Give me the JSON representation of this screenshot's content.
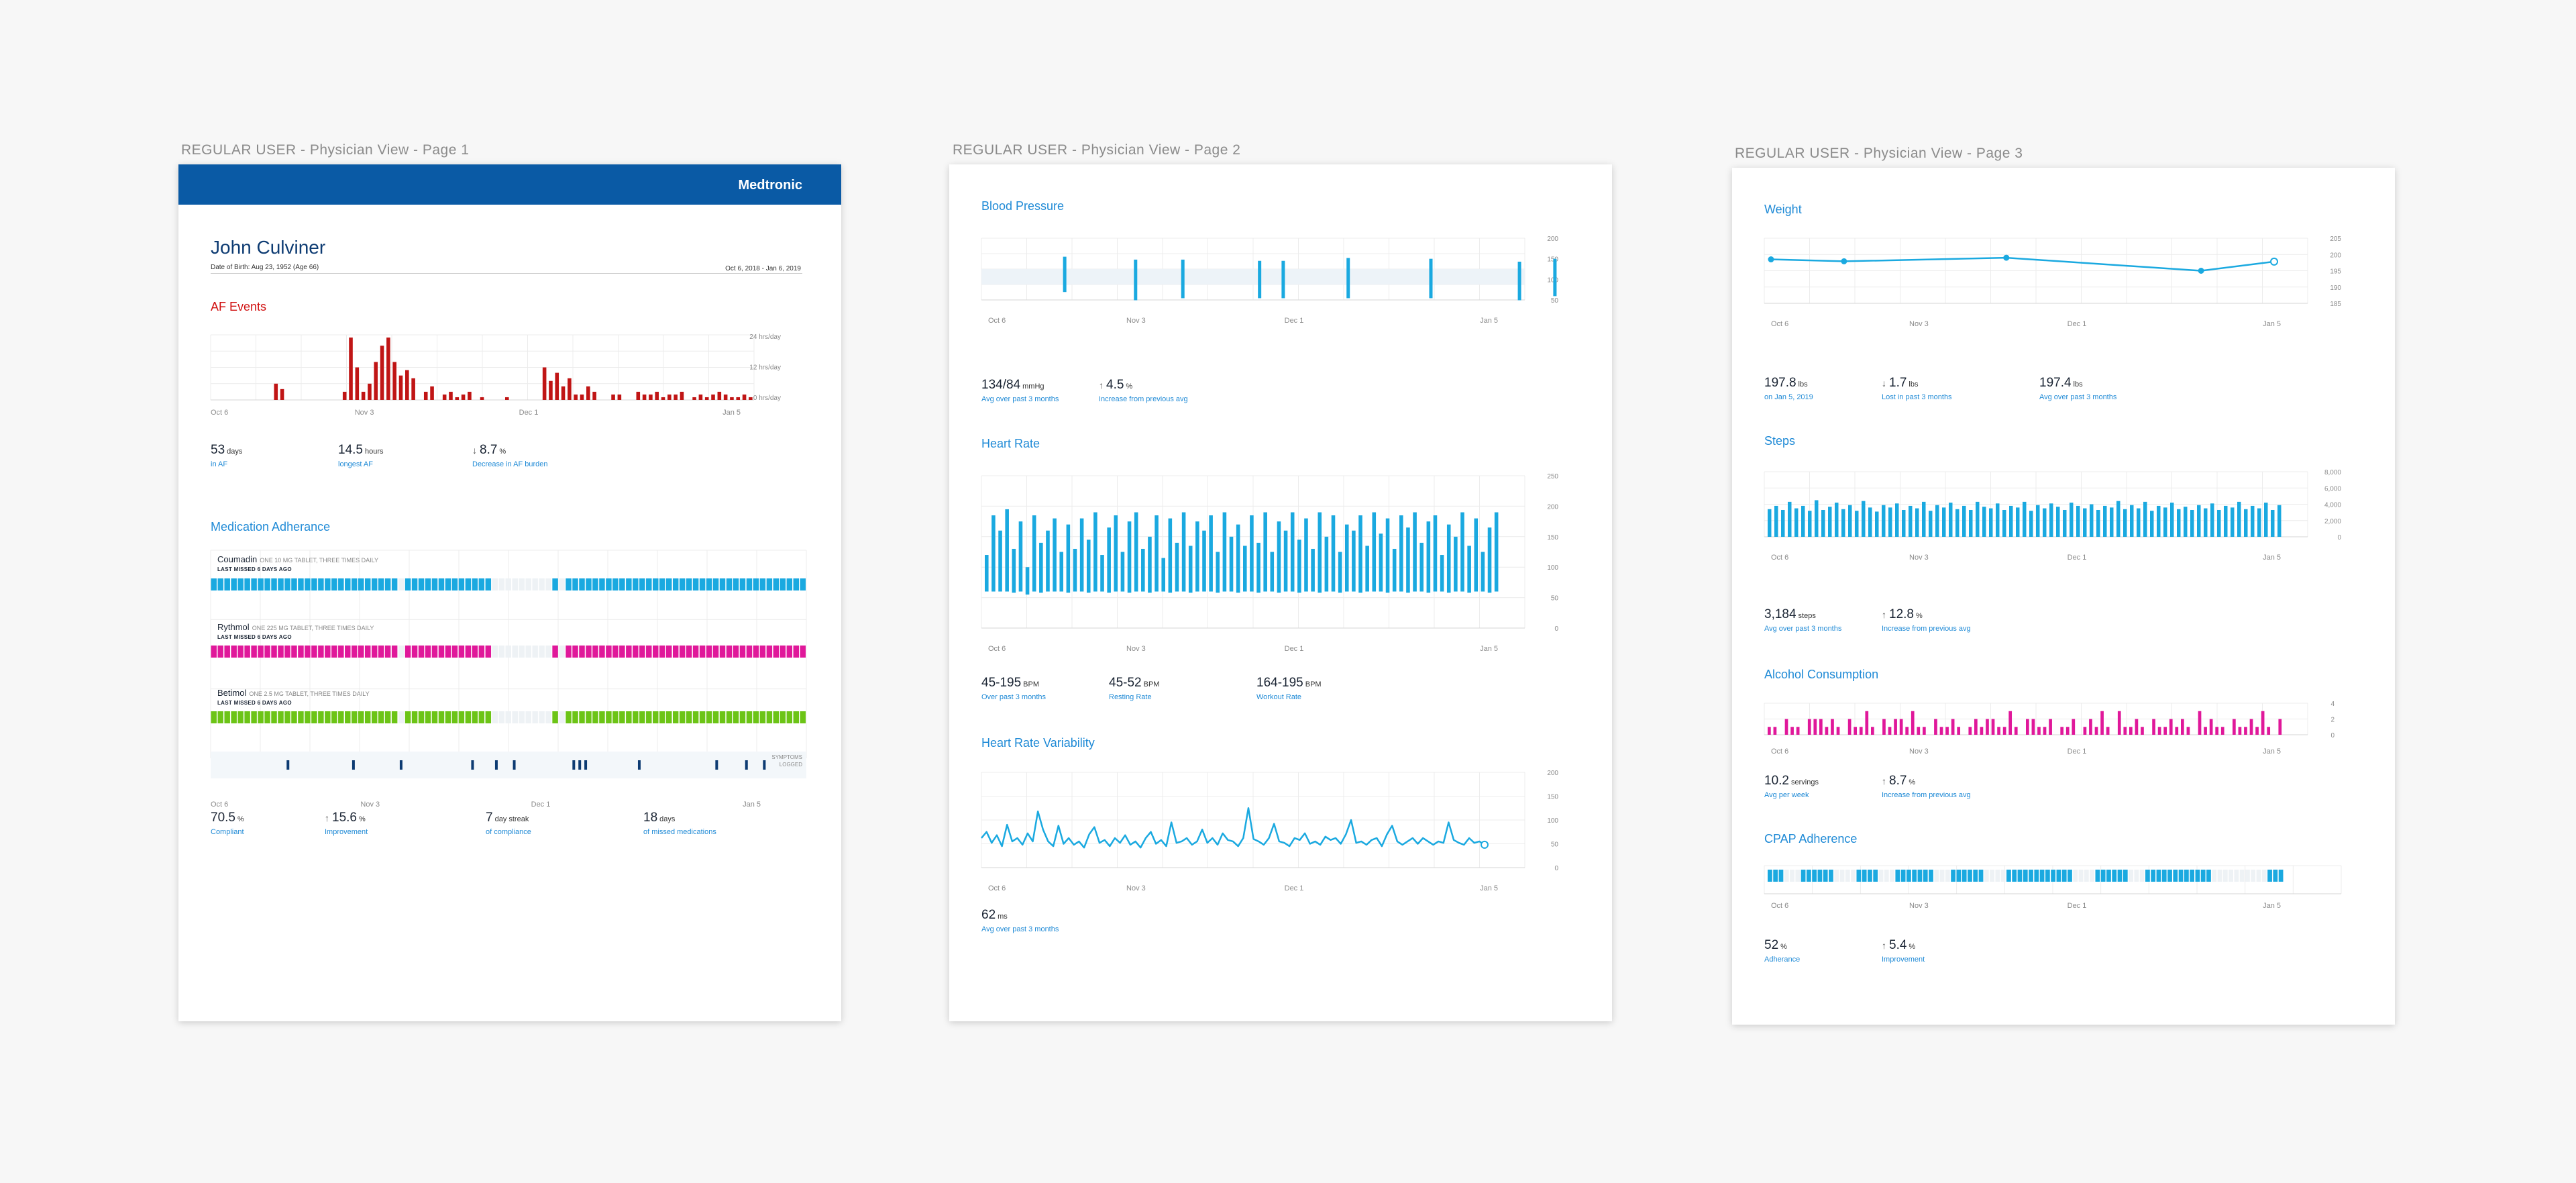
{
  "frames": {
    "page1_label": "REGULAR USER - Physician View - Page 1",
    "page2_label": "REGULAR USER - Physician View - Page 2",
    "page3_label": "REGULAR USER - Physician View - Page 3"
  },
  "colors": {
    "banner": "#0a5aa5",
    "accent": "#1f8ad6",
    "red": "#c01515",
    "cyan": "#1aa9e0",
    "magenta": "#e0189a",
    "green": "#6cc416",
    "navy": "#0d3b72"
  },
  "page1": {
    "brand": "Medtronic",
    "patient_name": "John Culviner",
    "dob": "Date of Birth: Aug 23, 1952 (Age 66)",
    "date_range": "Oct 6, 2018 - Jan 6, 2019",
    "af_title": "AF Events",
    "af_stats": [
      {
        "num": "53",
        "unit": "days",
        "label": "in AF",
        "arrow": ""
      },
      {
        "num": "14.5",
        "unit": "hours",
        "label": "longest AF",
        "arrow": ""
      },
      {
        "num": "8.7",
        "unit": "%",
        "label": "Decrease in AF burden",
        "arrow": "↓"
      }
    ],
    "med_title": "Medication Adherance",
    "medications": [
      {
        "name": "Coumadin",
        "dose": "ONE 10 MG TABLET, THREE TIMES DAILY",
        "missed": "LAST MISSED 6 DAYS AGO"
      },
      {
        "name": "Rythmol",
        "dose": "ONE 225 MG TABLET, THREE TIMES DAILY",
        "missed": "LAST MISSED 6 DAYS AGO"
      },
      {
        "name": "Betimol",
        "dose": "ONE 2.5 MG TABLET, THREE TIMES DAILY",
        "missed": "LAST MISSED 6 DAYS AGO"
      }
    ],
    "symptoms_label_1": "SYMPTOMS",
    "symptoms_label_2": "LOGGED",
    "med_stats": [
      {
        "num": "70.5",
        "unit": "%",
        "label": "Compliant",
        "arrow": ""
      },
      {
        "num": "15.6",
        "unit": "%",
        "label": "Improvement",
        "arrow": "↑"
      },
      {
        "num": "7",
        "unit": "day streak",
        "label": "of compliance",
        "arrow": ""
      },
      {
        "num": "18",
        "unit": "days",
        "label": "of missed medications",
        "arrow": ""
      }
    ]
  },
  "page2": {
    "bp_title": "Blood Pressure",
    "bp_stats": [
      {
        "num": "134/84",
        "unit": "mmHg",
        "label": "Avg over past 3 months",
        "arrow": ""
      },
      {
        "num": "4.5",
        "unit": "%",
        "label": "Increase from previous avg",
        "arrow": "↑"
      }
    ],
    "hr_title": "Heart Rate",
    "hr_stats": [
      {
        "num": "45-195",
        "unit": "BPM",
        "label": "Over past 3 months",
        "arrow": ""
      },
      {
        "num": "45-52",
        "unit": "BPM",
        "label": "Resting Rate",
        "arrow": ""
      },
      {
        "num": "164-195",
        "unit": "BPM",
        "label": "Workout Rate",
        "arrow": ""
      }
    ],
    "hrv_title": "Heart Rate Variability",
    "hrv_stats": [
      {
        "num": "62",
        "unit": "ms",
        "label": "Avg over past 3 months",
        "arrow": ""
      }
    ]
  },
  "page3": {
    "weight_title": "Weight",
    "weight_stats": [
      {
        "num": "197.8",
        "unit": "lbs",
        "label": "on Jan 5, 2019",
        "arrow": ""
      },
      {
        "num": "1.7",
        "unit": "lbs",
        "label": "Lost in past 3 months",
        "arrow": "↓"
      },
      {
        "num": "197.4",
        "unit": "lbs",
        "label": "Avg over past 3 months",
        "arrow": ""
      }
    ],
    "steps_title": "Steps",
    "steps_stats": [
      {
        "num": "3,184",
        "unit": "steps",
        "label": "Avg over past 3 months",
        "arrow": ""
      },
      {
        "num": "12.8",
        "unit": "%",
        "label": "Increase from previous avg",
        "arrow": "↑"
      }
    ],
    "alcohol_title": "Alcohol Consumption",
    "alcohol_stats": [
      {
        "num": "10.2",
        "unit": "servings",
        "label": "Avg per week",
        "arrow": ""
      },
      {
        "num": "8.7",
        "unit": "%",
        "label": "Increase from previous avg",
        "arrow": "↑"
      }
    ],
    "cpap_title": "CPAP Adherence",
    "cpap_stats": [
      {
        "num": "52",
        "unit": "%",
        "label": "Adherance",
        "arrow": ""
      },
      {
        "num": "5.4",
        "unit": "%",
        "label": "Improvement",
        "arrow": "↑"
      }
    ]
  },
  "chart_data": [
    {
      "id": "af",
      "type": "bar",
      "title": "AF Events",
      "x_ticks": [
        "Oct 6",
        "Nov 3",
        "Dec 1",
        "Jan 5"
      ],
      "y_ticks": [
        "24 hrs/day",
        "12 hrs/day",
        "0 hrs/day"
      ],
      "ylim": [
        0,
        24
      ],
      "values": [
        0,
        0,
        0,
        0,
        0,
        0,
        0,
        0,
        0,
        0,
        6,
        4,
        0,
        0,
        0,
        0,
        0,
        0,
        0,
        0,
        0,
        3,
        23,
        12,
        3,
        6,
        14,
        20,
        23,
        14,
        9,
        11,
        8,
        0,
        3,
        5,
        0,
        2,
        3,
        1,
        2,
        3,
        0,
        1,
        0,
        0,
        0,
        1,
        0,
        0,
        0,
        0,
        0,
        12,
        7,
        10,
        5,
        8,
        2,
        2,
        5,
        3,
        0,
        0,
        2,
        2,
        0,
        0,
        3,
        2,
        2,
        3,
        1,
        2,
        2,
        3,
        0,
        1,
        2,
        1,
        2,
        3,
        2,
        1,
        1,
        2,
        1
      ]
    },
    {
      "id": "meds",
      "type": "heatmap",
      "title": "Medication Adherance",
      "x_ticks": [
        "Oct 6",
        "Nov 3",
        "Dec 1",
        "Jan 5"
      ],
      "rows": [
        "Coumadin",
        "Rythmol",
        "Betimol"
      ],
      "taken": [
        1,
        1,
        1,
        1,
        1,
        1,
        1,
        1,
        1,
        1,
        1,
        1,
        1,
        1,
        1,
        1,
        1,
        1,
        1,
        1,
        1,
        1,
        1,
        1,
        1,
        1,
        1,
        1,
        0,
        1,
        1,
        1,
        1,
        1,
        1,
        1,
        1,
        1,
        1,
        1,
        1,
        1,
        0,
        0,
        0,
        0,
        0,
        0,
        0,
        0,
        0,
        1,
        0,
        1,
        1,
        1,
        1,
        1,
        1,
        1,
        1,
        1,
        1,
        1,
        1,
        1,
        1,
        1,
        1,
        1,
        1,
        1,
        1,
        1,
        1,
        1,
        1,
        1,
        1,
        1,
        1,
        1,
        1,
        1,
        1,
        1,
        1,
        1,
        1
      ],
      "symptoms": [
        6,
        17,
        25,
        37,
        41,
        44,
        54,
        55,
        56,
        65,
        78,
        83,
        86
      ]
    },
    {
      "id": "bp",
      "type": "bar",
      "title": "Blood Pressure",
      "x_ticks": [
        "Oct 6",
        "Nov 3",
        "Dec 1",
        "Jan 5"
      ],
      "y_ticks": [
        "200",
        "150",
        "100",
        "50"
      ],
      "ylim": [
        50,
        200
      ],
      "systolic": [
        155,
        148,
        148,
        145,
        145,
        152,
        150,
        143,
        150,
        147
      ],
      "diastolic": [
        110,
        90,
        95,
        95,
        95,
        95,
        95,
        90,
        100,
        95
      ],
      "x_index": [
        7,
        19,
        27,
        40,
        44,
        55,
        69,
        84,
        90
      ]
    },
    {
      "id": "hr",
      "type": "bar",
      "title": "Heart Rate",
      "x_ticks": [
        "Oct 6",
        "Nov 3",
        "Dec 1",
        "Jan 5"
      ],
      "y_ticks": [
        "250",
        "200",
        "150",
        "100",
        "50",
        "0"
      ],
      "ylim": [
        0,
        250
      ],
      "ranges": [
        [
          60,
          120
        ],
        [
          60,
          185
        ],
        [
          60,
          160
        ],
        [
          60,
          195
        ],
        [
          58,
          130
        ],
        [
          60,
          175
        ],
        [
          55,
          100
        ],
        [
          60,
          185
        ],
        [
          58,
          140
        ],
        [
          60,
          160
        ],
        [
          60,
          180
        ],
        [
          60,
          125
        ],
        [
          58,
          170
        ],
        [
          60,
          130
        ],
        [
          60,
          180
        ],
        [
          58,
          145
        ],
        [
          60,
          190
        ],
        [
          60,
          120
        ],
        [
          58,
          165
        ],
        [
          60,
          185
        ],
        [
          60,
          125
        ],
        [
          58,
          175
        ],
        [
          60,
          190
        ],
        [
          60,
          130
        ],
        [
          58,
          150
        ],
        [
          60,
          185
        ],
        [
          60,
          115
        ],
        [
          58,
          180
        ],
        [
          60,
          140
        ],
        [
          60,
          190
        ],
        [
          58,
          135
        ],
        [
          60,
          175
        ],
        [
          60,
          160
        ],
        [
          60,
          185
        ],
        [
          58,
          125
        ],
        [
          60,
          190
        ],
        [
          60,
          150
        ],
        [
          58,
          170
        ],
        [
          60,
          135
        ],
        [
          60,
          185
        ],
        [
          58,
          140
        ],
        [
          60,
          190
        ],
        [
          60,
          125
        ],
        [
          58,
          175
        ],
        [
          60,
          160
        ],
        [
          60,
          190
        ],
        [
          58,
          145
        ],
        [
          60,
          180
        ],
        [
          60,
          130
        ],
        [
          58,
          190
        ],
        [
          60,
          150
        ],
        [
          60,
          185
        ],
        [
          58,
          125
        ],
        [
          60,
          170
        ],
        [
          60,
          160
        ],
        [
          58,
          185
        ],
        [
          60,
          135
        ],
        [
          60,
          190
        ],
        [
          60,
          155
        ],
        [
          58,
          180
        ],
        [
          60,
          130
        ],
        [
          60,
          185
        ],
        [
          58,
          165
        ],
        [
          60,
          190
        ],
        [
          60,
          140
        ],
        [
          58,
          175
        ],
        [
          60,
          185
        ],
        [
          60,
          120
        ],
        [
          58,
          170
        ],
        [
          60,
          150
        ],
        [
          60,
          190
        ],
        [
          58,
          135
        ],
        [
          60,
          180
        ],
        [
          60,
          125
        ],
        [
          58,
          165
        ],
        [
          60,
          190
        ]
      ]
    },
    {
      "id": "hrv",
      "type": "line",
      "title": "Heart Rate Variability",
      "x_ticks": [
        "Oct 6",
        "Nov 3",
        "Dec 1",
        "Jan 5"
      ],
      "y_ticks": [
        "200",
        "150",
        "100",
        "50",
        "0"
      ],
      "ylim": [
        0,
        200
      ],
      "values": [
        62,
        75,
        52,
        68,
        45,
        90,
        55,
        62,
        48,
        72,
        55,
        118,
        80,
        55,
        45,
        88,
        50,
        62,
        48,
        55,
        42,
        70,
        85,
        52,
        58,
        45,
        62,
        52,
        68,
        48,
        55,
        42,
        62,
        75,
        50,
        58,
        45,
        95,
        52,
        55,
        62,
        48,
        55,
        80,
        52,
        62,
        48,
        72,
        58,
        55,
        45,
        62,
        125,
        60,
        55,
        48,
        62,
        92,
        55,
        52,
        45,
        62,
        58,
        72,
        50,
        55,
        48,
        65,
        58,
        62,
        50,
        70,
        100,
        52,
        55,
        48,
        58,
        62,
        45,
        70,
        88,
        55,
        48,
        55,
        62,
        50,
        62,
        55,
        48,
        55,
        52,
        95,
        58,
        52,
        48,
        62,
        52,
        55,
        48
      ]
    },
    {
      "id": "weight",
      "type": "line",
      "title": "Weight",
      "x_ticks": [
        "Oct 6",
        "Nov 3",
        "Dec 1",
        "Jan 5"
      ],
      "y_ticks": [
        "205",
        "200",
        "195",
        "190",
        "185"
      ],
      "ylim": [
        185,
        205
      ],
      "x_index": [
        0,
        9,
        29,
        53,
        62
      ],
      "values": [
        198.5,
        197.9,
        199.0,
        195.0,
        197.8
      ]
    },
    {
      "id": "steps",
      "type": "bar",
      "title": "Steps",
      "x_ticks": [
        "Oct 6",
        "Nov 3",
        "Dec 1",
        "Jan 5"
      ],
      "y_ticks": [
        "8,000",
        "6,000",
        "4,000",
        "2,000",
        "0"
      ],
      "ylim": [
        0,
        8000
      ],
      "values": [
        3400,
        3800,
        3300,
        4300,
        3500,
        3800,
        3200,
        4500,
        3300,
        3700,
        4200,
        3400,
        3900,
        3200,
        4400,
        3600,
        3100,
        3900,
        3600,
        4100,
        3300,
        3800,
        3500,
        4300,
        3200,
        3900,
        3600,
        4200,
        3400,
        3800,
        3300,
        4300,
        3700,
        3500,
        4100,
        3300,
        3800,
        3600,
        4300,
        3200,
        3900,
        3500,
        4100,
        3700,
        3300,
        4200,
        3800,
        3500,
        4000,
        3300,
        3800,
        3600,
        4400,
        3400,
        3900,
        3500,
        4300,
        3200,
        3800,
        3600,
        4200,
        3400,
        3700,
        3300,
        3900,
        3500,
        4100,
        3300,
        3800,
        3600,
        4300,
        3400,
        3800,
        3500,
        4200,
        3300,
        3900
      ]
    },
    {
      "id": "alcohol",
      "type": "bar",
      "title": "Alcohol Consumption",
      "x_ticks": [
        "Oct 6",
        "Nov 3",
        "Dec 1",
        "Jan 5"
      ],
      "y_ticks": [
        "4",
        "2",
        "0"
      ],
      "ylim": [
        0,
        4
      ],
      "values": [
        1,
        1,
        0,
        2,
        1,
        1,
        0,
        2,
        2,
        2,
        1,
        2,
        1,
        0,
        2,
        1,
        1,
        3,
        1,
        0,
        2,
        1,
        2,
        2,
        1,
        3,
        1,
        1,
        0,
        2,
        1,
        1,
        2,
        1,
        0,
        1,
        2,
        1,
        2,
        2,
        1,
        1,
        3,
        1,
        0,
        2,
        2,
        1,
        1,
        2,
        0,
        1,
        1,
        2,
        0,
        1,
        2,
        1,
        3,
        1,
        0,
        3,
        1,
        1,
        2,
        1,
        0,
        2,
        1,
        1,
        2,
        1,
        2,
        1,
        0,
        3,
        1,
        2,
        1,
        1,
        0,
        2,
        1,
        1,
        2,
        1,
        3,
        1,
        0,
        2
      ]
    },
    {
      "id": "cpap",
      "type": "heatmap",
      "title": "CPAP Adherence",
      "x_ticks": [
        "Oct 6",
        "Nov 3",
        "Dec 1",
        "Jan 5"
      ],
      "used": [
        1,
        1,
        1,
        0,
        0,
        0,
        1,
        1,
        1,
        1,
        1,
        1,
        0,
        0,
        0,
        0,
        1,
        1,
        1,
        1,
        0,
        0,
        0,
        1,
        1,
        1,
        1,
        1,
        1,
        1,
        0,
        0,
        0,
        1,
        1,
        1,
        1,
        1,
        1,
        0,
        0,
        0,
        0,
        1,
        1,
        1,
        1,
        1,
        1,
        1,
        1,
        1,
        1,
        1,
        1,
        0,
        0,
        0,
        0,
        1,
        1,
        1,
        1,
        1,
        1,
        0,
        0,
        0,
        1,
        1,
        1,
        1,
        1,
        1,
        1,
        1,
        1,
        1,
        1,
        1,
        0,
        0,
        0,
        0,
        0,
        0,
        0,
        0,
        0,
        0,
        1,
        1,
        1
      ]
    }
  ]
}
